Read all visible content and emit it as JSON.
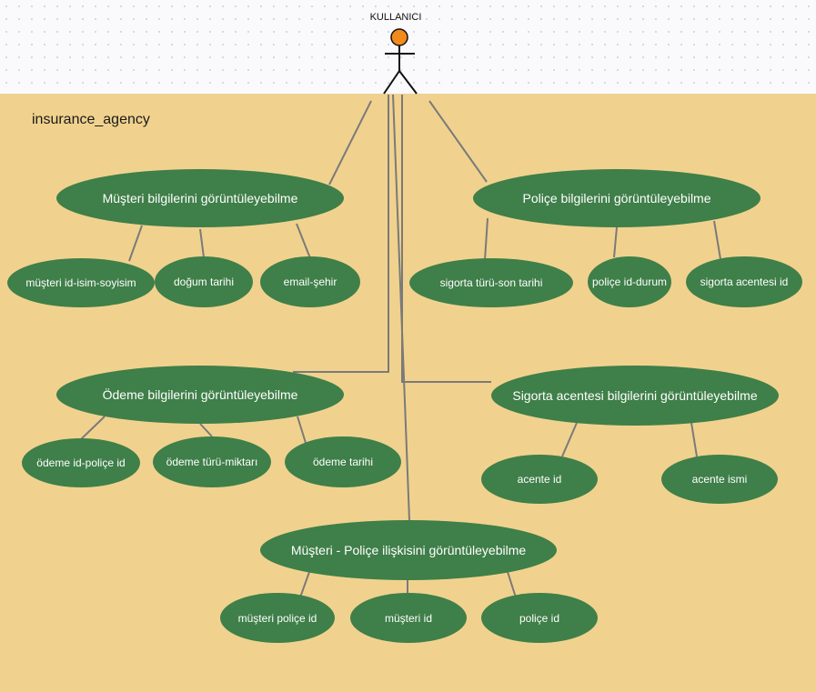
{
  "system": {
    "name": "insurance_agency"
  },
  "actor": {
    "name": "KULLANICI"
  },
  "colors": {
    "boundary_fill": "#f0d28e",
    "usecase_fill": "#3f7f49",
    "usecase_text": "#ffffff",
    "connector": "#7a7a7a",
    "actor_head": "#f28a1c"
  },
  "use_cases": {
    "customer": {
      "label": "Müşteri bilgilerini görüntüleyebilme",
      "items": [
        "müşteri id-isim-soyisim",
        "doğum tarihi",
        "email-şehir"
      ]
    },
    "policy": {
      "label": "Poliçe bilgilerini görüntüleyebilme",
      "items": [
        "sigorta türü-son tarihi",
        "poliçe id-durum",
        "sigorta acentesi id"
      ]
    },
    "payment": {
      "label": "Ödeme bilgilerini görüntüleyebilme",
      "items": [
        "ödeme id-poliçe id",
        "ödeme türü-miktarı",
        "ödeme tarihi"
      ]
    },
    "agency": {
      "label": "Sigorta acentesi bilgilerini görüntüleyebilme",
      "items": [
        "acente id",
        "acente ismi"
      ]
    },
    "relation": {
      "label": "Müşteri - Poliçe ilişkisini görüntüleyebilme",
      "items": [
        "müşteri poliçe id",
        "müşteri id",
        "poliçe id"
      ]
    }
  }
}
